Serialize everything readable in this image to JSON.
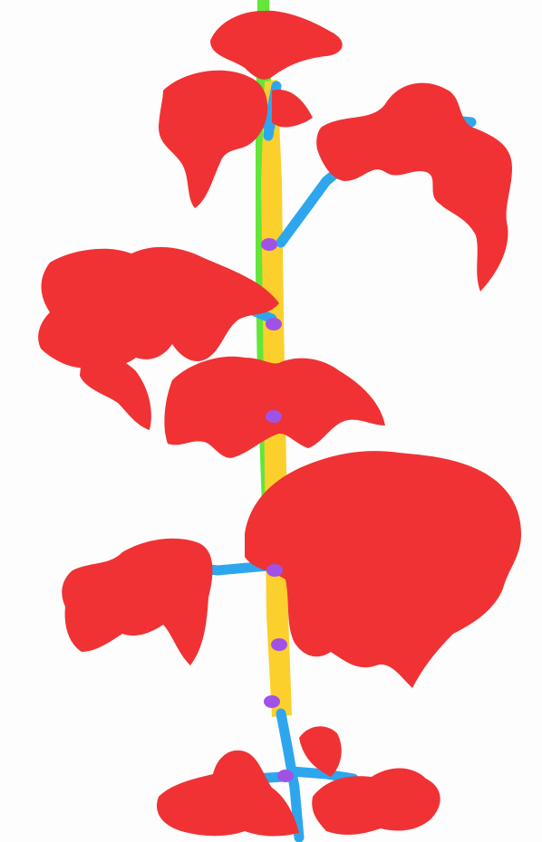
{
  "image": {
    "subject": "tomato-plant-segmentation-mask",
    "background_color": "#fdfdfd"
  },
  "legend_colors": {
    "leaf": "#f03234",
    "petiole": "#2ea6ee",
    "main_stem": "#fbd02c",
    "node": "#a052e6",
    "support_stake": "#62e63a"
  },
  "counts": {
    "nodes_visible": 7
  }
}
